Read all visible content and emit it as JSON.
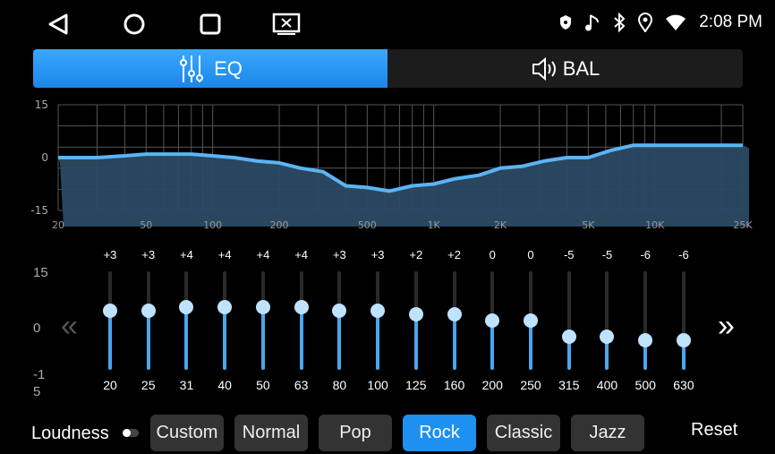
{
  "status_bar": {
    "time": "2:08 PM",
    "icons": [
      "shield-icon",
      "music-note-icon",
      "bluetooth-icon",
      "location-icon",
      "wifi-icon"
    ]
  },
  "nav_icons": [
    "back-icon",
    "home-icon",
    "recents-icon",
    "screen-cast-icon"
  ],
  "tabs": [
    {
      "label": "EQ",
      "icon": "equalizer-icon",
      "active": true
    },
    {
      "label": "BAL",
      "icon": "speaker-icon",
      "active": false
    }
  ],
  "accent": "#1e90f0",
  "chart_data": {
    "type": "area",
    "y_ticks": [
      "15",
      "0",
      "-15"
    ],
    "ylim": [
      -15,
      15
    ],
    "x_scale": "log",
    "xlim": [
      20,
      25000
    ],
    "x_ticks": [
      "20",
      "50",
      "100",
      "200",
      "500",
      "1K",
      "2K",
      "5K",
      "10K",
      "25K"
    ],
    "x_tick_values": [
      20,
      50,
      100,
      200,
      500,
      1000,
      2000,
      5000,
      10000,
      25000
    ],
    "grid": true,
    "x": [
      20,
      30,
      40,
      50,
      63,
      80,
      100,
      125,
      160,
      200,
      250,
      315,
      400,
      500,
      630,
      800,
      1000,
      1250,
      1600,
      2000,
      2500,
      3150,
      4000,
      5000,
      6300,
      8000,
      10000,
      25000
    ],
    "y": [
      0,
      0,
      0.5,
      1,
      1,
      1,
      0.5,
      0,
      -1,
      -1.5,
      -3,
      -4,
      -8,
      -8.5,
      -9.5,
      -8,
      -7.5,
      -6,
      -5,
      -3,
      -2.5,
      -1,
      0,
      0,
      2,
      3.5,
      3.5,
      3.5
    ]
  },
  "sliders": {
    "scale_labels": {
      "top": "15",
      "mid": "0",
      "bottom_1": "-1",
      "bottom_2": "5"
    },
    "range": [
      -15,
      15
    ],
    "bands": [
      {
        "freq": "20",
        "gain": "+3",
        "value": 3
      },
      {
        "freq": "25",
        "gain": "+3",
        "value": 3
      },
      {
        "freq": "31",
        "gain": "+4",
        "value": 4
      },
      {
        "freq": "40",
        "gain": "+4",
        "value": 4
      },
      {
        "freq": "50",
        "gain": "+4",
        "value": 4
      },
      {
        "freq": "63",
        "gain": "+4",
        "value": 4
      },
      {
        "freq": "80",
        "gain": "+3",
        "value": 3
      },
      {
        "freq": "100",
        "gain": "+3",
        "value": 3
      },
      {
        "freq": "125",
        "gain": "+2",
        "value": 2
      },
      {
        "freq": "160",
        "gain": "+2",
        "value": 2
      },
      {
        "freq": "200",
        "gain": "0",
        "value": 0
      },
      {
        "freq": "250",
        "gain": "0",
        "value": 0
      },
      {
        "freq": "315",
        "gain": "-5",
        "value": -5
      },
      {
        "freq": "400",
        "gain": "-5",
        "value": -5
      },
      {
        "freq": "500",
        "gain": "-6",
        "value": -6
      },
      {
        "freq": "630",
        "gain": "-6",
        "value": -6
      }
    ]
  },
  "footer": {
    "loudness_label": "Loudness",
    "loudness_on": false,
    "presets": [
      "Custom",
      "Normal",
      "Pop",
      "Rock",
      "Classic",
      "Jazz"
    ],
    "active_preset": "Rock",
    "reset_label": "Reset"
  }
}
